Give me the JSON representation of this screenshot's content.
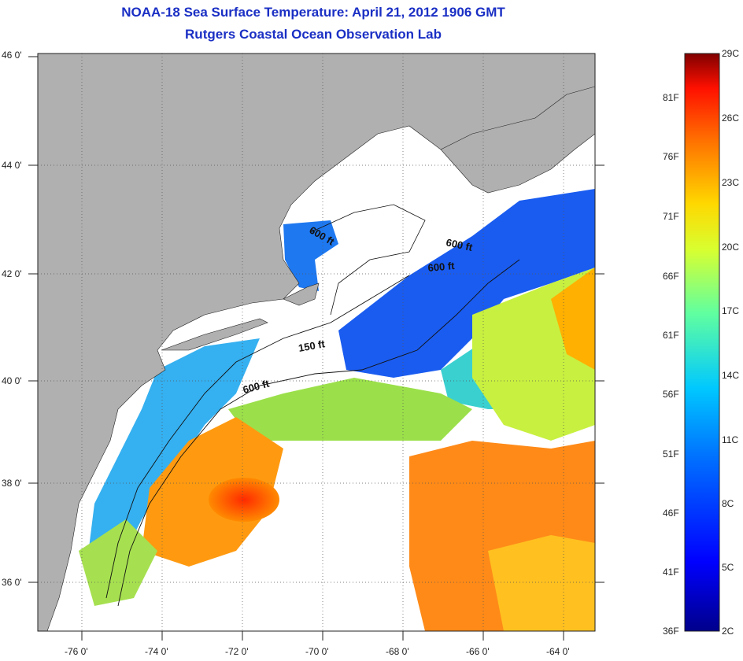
{
  "header": {
    "title": "NOAA-18 Sea Surface Temperature:  April 21, 2012 1906 GMT",
    "subtitle": "Rutgers Coastal Ocean Observation Lab"
  },
  "map": {
    "lat_labels": [
      "46 0'",
      "44 0'",
      "42 0'",
      "40 0'",
      "38 0'",
      "36 0'"
    ],
    "lon_labels": [
      "-76 0'",
      "-74 0'",
      "-72 0'",
      "-70 0'",
      "-68 0'",
      "-66 0'",
      "-64 0'"
    ],
    "contour_labels": [
      "600 ft",
      "600 ft",
      "600 ft",
      "150 ft",
      "600 ft"
    ],
    "colors": {
      "land": "#b0b0b0",
      "cloud": "#ffffff",
      "grid": "#555555"
    }
  },
  "colorbar": {
    "f_labels": [
      "81F",
      "76F",
      "71F",
      "66F",
      "61F",
      "56F",
      "51F",
      "46F",
      "41F",
      "36F"
    ],
    "c_labels": [
      "29C",
      "26C",
      "23C",
      "20C",
      "17C",
      "14C",
      "11C",
      "8C",
      "5C",
      "2C"
    ],
    "gradient": [
      "#000080",
      "#0000ff",
      "#0080ff",
      "#00ffff",
      "#80ff80",
      "#ffff00",
      "#ff8000",
      "#ff0000",
      "#800000"
    ]
  }
}
